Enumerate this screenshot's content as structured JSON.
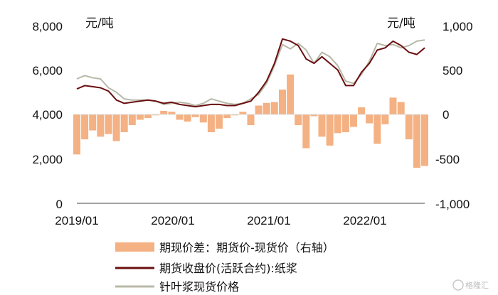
{
  "chart_data": {
    "type": "line",
    "title": "",
    "left_axis": {
      "unit": "元/吨",
      "ticks": [
        "8,000",
        "6,000",
        "4,000",
        "2,000",
        "0"
      ],
      "range": [
        0,
        8000
      ]
    },
    "right_axis": {
      "unit": "元/吨",
      "ticks": [
        "1,000",
        "500",
        "0",
        "-500",
        "-1,000"
      ],
      "range": [
        -1000,
        1000
      ]
    },
    "x_ticks": [
      "2019/01",
      "2020/01",
      "2021/01",
      "2022/01"
    ],
    "x_range": [
      "2019-01",
      "2022-09"
    ],
    "grid": false,
    "legend_position": "bottom",
    "series": [
      {
        "name": "期现价差：期货价-现货价（右轴）",
        "kind": "bar",
        "axis": "right",
        "color": "#f4b183",
        "points": [
          [
            "2019-01",
            -450
          ],
          [
            "2019-02",
            -280
          ],
          [
            "2019-03",
            -180
          ],
          [
            "2019-04",
            -250
          ],
          [
            "2019-05",
            -220
          ],
          [
            "2019-06",
            -300
          ],
          [
            "2019-07",
            -200
          ],
          [
            "2019-08",
            -120
          ],
          [
            "2019-09",
            -60
          ],
          [
            "2019-10",
            -40
          ],
          [
            "2019-11",
            -10
          ],
          [
            "2019-12",
            40
          ],
          [
            "2020-01",
            30
          ],
          [
            "2020-02",
            -60
          ],
          [
            "2020-03",
            -80
          ],
          [
            "2020-04",
            -30
          ],
          [
            "2020-05",
            -90
          ],
          [
            "2020-06",
            -200
          ],
          [
            "2020-07",
            -160
          ],
          [
            "2020-08",
            -40
          ],
          [
            "2020-09",
            -10
          ],
          [
            "2020-10",
            30
          ],
          [
            "2020-11",
            -120
          ],
          [
            "2020-12",
            100
          ],
          [
            "2021-01",
            130
          ],
          [
            "2021-02",
            140
          ],
          [
            "2021-03",
            280
          ],
          [
            "2021-04",
            450
          ],
          [
            "2021-05",
            -120
          ],
          [
            "2021-06",
            -380
          ],
          [
            "2021-07",
            -20
          ],
          [
            "2021-08",
            -250
          ],
          [
            "2021-09",
            -350
          ],
          [
            "2021-10",
            -210
          ],
          [
            "2021-11",
            -200
          ],
          [
            "2021-12",
            -140
          ],
          [
            "2022-01",
            80
          ],
          [
            "2022-02",
            -100
          ],
          [
            "2022-03",
            -330
          ],
          [
            "2022-04",
            -110
          ],
          [
            "2022-05",
            190
          ],
          [
            "2022-06",
            140
          ],
          [
            "2022-07",
            -280
          ],
          [
            "2022-08",
            -600
          ],
          [
            "2022-09",
            -580
          ]
        ]
      },
      {
        "name": "期货收盘价(活跃合约):纸浆",
        "kind": "line",
        "axis": "left",
        "color": "#6b0f10",
        "points": [
          [
            "2019-01",
            5150
          ],
          [
            "2019-02",
            5300
          ],
          [
            "2019-03",
            5250
          ],
          [
            "2019-04",
            5200
          ],
          [
            "2019-05",
            5050
          ],
          [
            "2019-06",
            4650
          ],
          [
            "2019-07",
            4500
          ],
          [
            "2019-08",
            4550
          ],
          [
            "2019-09",
            4600
          ],
          [
            "2019-10",
            4650
          ],
          [
            "2019-11",
            4600
          ],
          [
            "2019-12",
            4500
          ],
          [
            "2020-01",
            4550
          ],
          [
            "2020-02",
            4450
          ],
          [
            "2020-03",
            4400
          ],
          [
            "2020-04",
            4350
          ],
          [
            "2020-05",
            4400
          ],
          [
            "2020-06",
            4450
          ],
          [
            "2020-07",
            4450
          ],
          [
            "2020-08",
            4400
          ],
          [
            "2020-09",
            4400
          ],
          [
            "2020-10",
            4500
          ],
          [
            "2020-11",
            4600
          ],
          [
            "2020-12",
            5000
          ],
          [
            "2021-01",
            5500
          ],
          [
            "2021-02",
            6300
          ],
          [
            "2021-03",
            7400
          ],
          [
            "2021-04",
            7300
          ],
          [
            "2021-05",
            7100
          ],
          [
            "2021-06",
            6500
          ],
          [
            "2021-07",
            6300
          ],
          [
            "2021-08",
            6600
          ],
          [
            "2021-09",
            6300
          ],
          [
            "2021-10",
            6000
          ],
          [
            "2021-11",
            5300
          ],
          [
            "2021-12",
            5300
          ],
          [
            "2022-01",
            5900
          ],
          [
            "2022-02",
            6300
          ],
          [
            "2022-03",
            6900
          ],
          [
            "2022-04",
            7000
          ],
          [
            "2022-05",
            7300
          ],
          [
            "2022-06",
            7100
          ],
          [
            "2022-07",
            6800
          ],
          [
            "2022-08",
            6700
          ],
          [
            "2022-09",
            7000
          ]
        ]
      },
      {
        "name": "针叶浆现货价格",
        "kind": "line",
        "axis": "left",
        "color": "#b8b8a8",
        "points": [
          [
            "2019-01",
            5600
          ],
          [
            "2019-02",
            5750
          ],
          [
            "2019-03",
            5650
          ],
          [
            "2019-04",
            5600
          ],
          [
            "2019-05",
            5200
          ],
          [
            "2019-06",
            5000
          ],
          [
            "2019-07",
            4700
          ],
          [
            "2019-08",
            4650
          ],
          [
            "2019-09",
            4650
          ],
          [
            "2019-10",
            4650
          ],
          [
            "2019-11",
            4600
          ],
          [
            "2019-12",
            4450
          ],
          [
            "2020-01",
            4500
          ],
          [
            "2020-02",
            4550
          ],
          [
            "2020-03",
            4500
          ],
          [
            "2020-04",
            4400
          ],
          [
            "2020-05",
            4500
          ],
          [
            "2020-06",
            4700
          ],
          [
            "2020-07",
            4600
          ],
          [
            "2020-08",
            4500
          ],
          [
            "2020-09",
            4450
          ],
          [
            "2020-10",
            4500
          ],
          [
            "2020-11",
            4700
          ],
          [
            "2020-12",
            4900
          ],
          [
            "2021-01",
            5400
          ],
          [
            "2021-02",
            6200
          ],
          [
            "2021-03",
            7150
          ],
          [
            "2021-04",
            6950
          ],
          [
            "2021-05",
            7200
          ],
          [
            "2021-06",
            6900
          ],
          [
            "2021-07",
            6300
          ],
          [
            "2021-08",
            6800
          ],
          [
            "2021-09",
            6600
          ],
          [
            "2021-10",
            6200
          ],
          [
            "2021-11",
            5500
          ],
          [
            "2021-12",
            5400
          ],
          [
            "2022-01",
            5800
          ],
          [
            "2022-02",
            6400
          ],
          [
            "2022-03",
            7200
          ],
          [
            "2022-04",
            7100
          ],
          [
            "2022-05",
            7150
          ],
          [
            "2022-06",
            7000
          ],
          [
            "2022-07",
            7100
          ],
          [
            "2022-08",
            7300
          ],
          [
            "2022-09",
            7350
          ]
        ]
      }
    ]
  },
  "watermark": "格隆汇"
}
